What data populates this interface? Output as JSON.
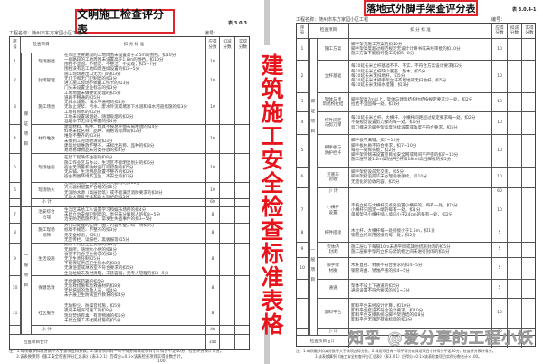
{
  "side_title": "建筑施工安全检查标准表格",
  "watermark": "知乎 @爱分享的工程小妖",
  "headers": [
    "序\n号",
    "检查项目",
    "扣  分  标  准",
    "应得\n分数",
    "扣减\n分数",
    "实得\n分数"
  ],
  "left": {
    "title": "文明施工检查评分表",
    "table_no": "表 3.0.3",
    "project": "工程名称：随州市东方家园小区工程",
    "code": "编号：",
    "group_a": "保\n证\n项\n目",
    "group_b": "一\n般\n项\n目",
    "rows_a": [
      {
        "no": "1",
        "item": "现场围挡",
        "score": "10",
        "std": [
          "在市区主要路段的工地周围未设置高于2.5m的围挡，扣10分",
          "一般路段的工地周围未设置高于1.8m的围挡，扣10分",
          "围挡不坚固、不稳定、不整洁、不美观，扣5~7分",
          "围挡没有沿工地四周连续设置的扣3~5分"
        ]
      },
      {
        "no": "2",
        "item": "封闭管理",
        "score": "10",
        "std": [
          "施工现场进出口无大门的扣3分",
          "无门卫和无门卫制度的扣3分",
          "进入施工现场不佩戴工作卡的扣3分",
          "门头未设置企业标志的扣3分"
        ]
      },
      {
        "no": "3",
        "item": "施工场地",
        "score": "10",
        "std": [
          "工地地面未做硬化处理的扣5分",
          "道路不畅通的扣5分",
          "无排水设施、排水不通畅的扣4分",
          "无防止泥浆、污水、废水外流或堵塞下水道和排水河道措施的扣3分",
          "工地有积水的扣2分",
          "工地未设置吸烟处、随意吸烟的扣2分",
          "温暖季节无绿化布置的扣4分"
        ]
      },
      {
        "no": "4",
        "item": "材料堆放",
        "score": "10",
        "std": [
          "建筑材料、构件、料具不按总平面布局堆放的扣4分",
          "料堆未挂名称、品种、规格等标牌的扣2分",
          "堆放不整齐的扣3分",
          "未做到工完场地清的扣3分",
          "建筑垃圾堆放不整齐、未标出名称、品种的扣3分",
          "易燃易爆物品未分类存放的扣4分"
        ]
      },
      {
        "no": "5",
        "item": "现场住宿",
        "score": "10",
        "std": [
          "在建工程兼作住宿的扣8分",
          "施工作业区与办公、生活区不能明显划分的扣6分",
          "宿舍无消暑和防蚊虫叮咬措施的扣5分",
          "无床铺、生活用品放置不整齐的扣2分",
          "宿舍周围环境不卫生、不安全的扣3分"
        ]
      },
      {
        "no": "6",
        "item": "现场防火",
        "score": "10",
        "std": [
          "无消防措施、制度或无灭火器材的扣10分",
          "灭火器材配置不合理的扣5分",
          "无消防水源（高层建筑）或不能满足消防要求的扣8分",
          "无动火审批手续和动火监护的扣5分"
        ]
      }
    ],
    "subtotal_a": {
      "label": "小  计",
      "score": "60"
    },
    "rows_b": [
      {
        "no": "7",
        "item": "治安综合\n治理",
        "score": "8",
        "std": [
          "生活区未给工人设置学习和娱乐场所的扣4分",
          "未建立治安保卫制度的、责任未分解到人的扣3~5分",
          "治安防范措施不利，常发生失盗事件的扣3~5分"
        ]
      },
      {
        "no": "8",
        "item": "施工现场\n标牌",
        "score": "8",
        "std": [
          "大门口处挂的五牌一图，内容不全，缺一项扣2分",
          "标牌不规范、不整齐的扣3分",
          "无安全标语，扣5分",
          "无宣传栏、读报栏、黑板报等扣5分"
        ]
      },
      {
        "no": "9",
        "item": "生活设施",
        "score": "8",
        "std": [
          "厕所不符合卫生要求的扣4分",
          "无厕所，随地大小便的扣8分",
          "食堂不符合卫生要求的扣8分",
          "无卫生责任制扣5分",
          "不能保证供应卫生饮水的扣8分",
          "无淋浴室或淋浴室不符合要求的扣5分",
          "生活垃圾未及时清理，未装容器，无专人管理的扣3~5分"
        ]
      },
      {
        "no": "10",
        "item": "保健急救",
        "score": "8",
        "std": [
          "无保健医药箱的扣5分",
          "无急救措施和急救器材的扣8分",
          "无经培训的急救人员，扣4分",
          "未开展卫生防病宣传教育的扣4分"
        ]
      },
      {
        "no": "11",
        "item": "社区服务",
        "score": "8",
        "std": [
          "无防粉尘、防噪音措施，扣5分",
          "夜间未经许可施工的扣8分",
          "现场焚烧有毒、有害物质的扣5分",
          "未建立施工不扰民措施的扣5分"
        ]
      }
    ],
    "subtotal_b": {
      "label": "小  计",
      "score": "40"
    },
    "total": {
      "label": "检查项目合计",
      "score": "100"
    },
    "notes": [
      "注：1.每项最多扣减分数不大于该项应得分数；2.保证项目有一项不得分或保证项目小计得分不足40分，检查评分表计零分。",
      "3.该表换算到《施工安全检查评分汇总表》（表3.0.1）后得分=0.6×该表检查项目实得分数合计。"
    ],
    "page": "100"
  },
  "right": {
    "title": "落地式外脚手架查评分表",
    "table_no": "表 3.0.4-1",
    "project": "工程名称：随州市东方家园小区工程",
    "code": "编号：",
    "group_a": "保\n证\n项\n目",
    "group_b": "一\n般\n项\n目",
    "rows_a": [
      {
        "no": "1",
        "item": "施工方案",
        "score": "10",
        "std": [
          "脚手架无施工方案的扣10分",
          "脚手架高度超过规范规定无设计计算书或未经审批的扣10分",
          "施工方案不能指导施工的扣5~8分"
        ]
      },
      {
        "no": "2",
        "item": "立杆基础",
        "score": "10",
        "std": [
          "每10延长米立杆基础不平、不实、不符合方案设计要求扣2分",
          "每10延长米立杆缺少底座、垫木，扣5分",
          "每10延长米无扫地杆，扣5分",
          "每10延长米木脚手架立杆不埋地或无扫地杆，扣5分",
          "每10延长米无排水措施，扣3分"
        ]
      },
      {
        "no": "3",
        "item": "架体与建\n筑结构拉结",
        "score": "10",
        "std": [
          "脚手架高7m以上，架体与建筑结构拉结按规定要求少一处，扣2分",
          "拉结不坚固每一处，扣1分"
        ]
      },
      {
        "no": "4",
        "item": "杆件间距\n与剪刀撑",
        "score": "10",
        "std": [
          "每10延长米立杆、大横杆、小横杆间距超过规定要求每一处，扣2分",
          "不按规定设置剪刀撑的每一处，扣5分",
          "剪刀撑未沿脚手架高度连续设置或角度不符合要求，扣5分"
        ]
      },
      {
        "no": "5",
        "item": "脚手板与\n防护栏杆",
        "score": "10",
        "std": [
          "脚手板不满铺，扣7~10分",
          "脚手板材质不符合要求，扣7~10分",
          "每有一处探头板，扣2分",
          "脚手架外侧未设置密目式安全网或网间不严密的扣7~10分",
          "施工层不设1.2m高防护栏杆和18cm高挡脚板的扣5分"
        ]
      },
      {
        "no": "6",
        "item": "交底与\n验收",
        "score": "10",
        "std": [
          "脚手架搭设前无交底，扣5分",
          "脚手架搭设完毕未办理验收手续，扣10分",
          "无量化的验收内容，扣5分"
        ]
      }
    ],
    "subtotal_a": {
      "label": "小  计",
      "score": "60"
    },
    "rows_b": [
      {
        "no": "7",
        "item": "小横杆\n设置",
        "score": "10",
        "std": [
          "不按立杆与大横杆交点处设置小横杆的，每有一处，扣2分",
          "小横杆只固定一端的每有一处，扣1分",
          "单排架子小横杆插入墙内小于24cm的每有一处，扣2分"
        ]
      },
      {
        "no": "8",
        "item": "杆件搭接",
        "score": "5",
        "std": [
          "木立杆、大横杆每一处搭接小于1.5m，扣1分",
          "钢管立杆采用搭接的每一处，扣2分"
        ]
      },
      {
        "no": "9",
        "item": "架体内\n封闭",
        "score": "5",
        "std": [
          "施工层以下每隔10m未用平网或其他措施封闭的扣5分",
          "施工层脚手架内立杆与建筑物之间未进行封闭的扣5分"
        ]
      },
      {
        "no": "10",
        "item": "脚手架\n材质",
        "score": "5",
        "std": [
          "木杆直径、材质不符合要求的扣4~5分",
          "钢管弯曲、锈蚀严重的扣4~5分"
        ]
      },
      {
        "no": "",
        "item": "通道",
        "score": "5",
        "std": [
          "架体不设上下通道的扣5分",
          "通道设置不符合要求的扣1~3分"
        ]
      },
      {
        "no": "",
        "item": "卸料平台",
        "score": "10",
        "std": [
          "卸料平台未经设计计算，扣10分",
          "卸料平台搭设不符合设计要求，扣10分",
          "卸料平台支撑系统与脚手架连结的扣8分",
          "卸料平台无限定荷载标牌的扣3分"
        ]
      }
    ],
    "subtotal_b": {
      "label": "小  计",
      "score": "40"
    },
    "total": {
      "label": "检查项目合计",
      "score": ""
    },
    "notes": [
      "注：1.每项最多扣减分数不大于该项应得分数；2.保证项目有一项不得分或保证项目小计得分不足40分，检查评分表计零分。",
      "3.该表换算到《施工安全检查评分汇总表》（表3.0.1）后得分=0.1×该表检查项目实得分数合计×100。"
    ]
  }
}
